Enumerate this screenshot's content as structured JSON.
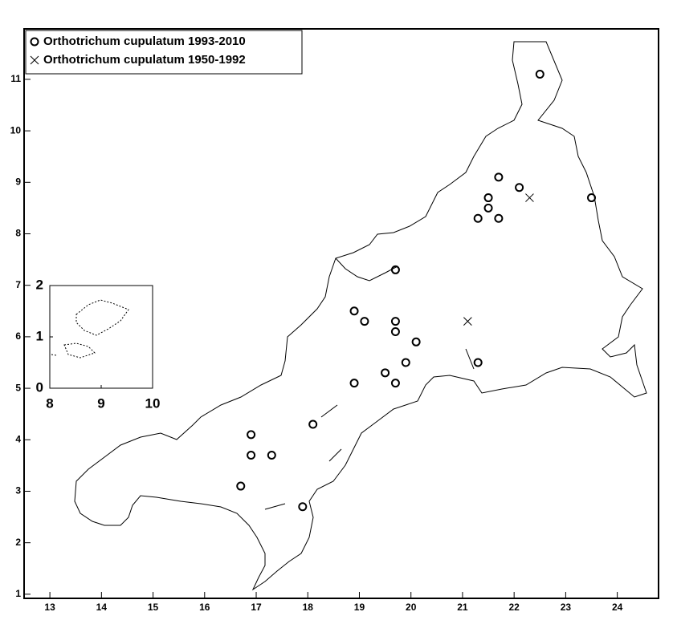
{
  "chart_data": {
    "type": "scatter",
    "series": [
      {
        "name": "Orthotrichum cupulatum 1993-2010",
        "marker": "circle",
        "color": "#000000",
        "x": [
          22.5,
          21.7,
          22.1,
          21.5,
          23.5,
          21.5,
          21.3,
          21.7,
          19.7,
          18.9,
          19.1,
          19.7,
          19.7,
          20.1,
          19.9,
          21.3,
          19.5,
          18.9,
          19.7,
          18.1,
          16.9,
          16.9,
          17.3,
          16.7,
          17.9
        ],
        "values": [
          11.1,
          9.1,
          8.9,
          8.7,
          8.7,
          8.5,
          8.3,
          8.3,
          7.3,
          6.5,
          6.3,
          6.3,
          6.1,
          5.9,
          5.5,
          5.5,
          5.3,
          5.1,
          5.1,
          4.3,
          4.1,
          3.7,
          3.7,
          3.1,
          2.7
        ]
      },
      {
        "name": "Orthotrichum cupulatum 1950-1992",
        "marker": "cross",
        "color": "#000000",
        "x": [
          22.3,
          21.1
        ],
        "values": [
          8.7,
          6.3
        ]
      }
    ],
    "xlim": [
      12.5,
      24.8
    ],
    "ylim": [
      0.92,
      11.98
    ],
    "xticks": [
      13,
      14,
      15,
      16,
      17,
      18,
      19,
      20,
      21,
      22,
      23,
      24
    ],
    "yticks": [
      1,
      2,
      3,
      4,
      5,
      6,
      7,
      8,
      9,
      10,
      11
    ],
    "legend": "top-left",
    "inset": {
      "xlim": [
        8,
        10
      ],
      "ylim": [
        0,
        2
      ],
      "xticks": [
        8,
        9,
        10
      ],
      "yticks": [
        0,
        1,
        2
      ]
    }
  }
}
